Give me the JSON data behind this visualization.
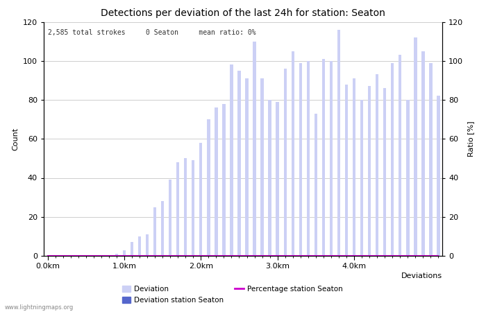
{
  "title": "Detections per deviation of the last 24h for station: Seaton",
  "xlabel": "Deviations",
  "ylabel_left": "Count",
  "ylabel_right": "Ratio [%]",
  "info_text": "2,585 total strokes     0 Seaton     mean ratio: 0%",
  "watermark": "www.lightningmaps.org",
  "ylim": [
    0,
    120
  ],
  "yticks": [
    0,
    20,
    40,
    60,
    80,
    100,
    120
  ],
  "bar_color_deviation": "#ccd0f5",
  "bar_color_station": "#5566cc",
  "line_color": "#cc00cc",
  "xtick_labels": [
    "0.0km",
    "1.0km",
    "2.0km",
    "3.0km",
    "4.0km"
  ],
  "xtick_positions": [
    0,
    10,
    20,
    30,
    40
  ],
  "deviation_values": [
    0,
    0,
    0,
    0,
    0,
    0,
    0,
    0,
    0,
    1,
    3,
    7,
    10,
    11,
    25,
    28,
    39,
    48,
    50,
    49,
    58,
    70,
    76,
    78,
    98,
    95,
    91,
    110,
    91,
    80,
    79,
    96,
    105,
    99,
    100,
    73,
    101,
    100,
    116,
    88,
    91,
    80,
    87,
    93,
    86,
    99,
    103,
    80,
    112,
    105,
    99,
    82
  ],
  "station_values": [
    0,
    0,
    0,
    0,
    0,
    0,
    0,
    0,
    0,
    0,
    0,
    0,
    0,
    0,
    0,
    0,
    0,
    0,
    0,
    0,
    0,
    0,
    0,
    0,
    0,
    0,
    0,
    0,
    0,
    0,
    0,
    0,
    0,
    0,
    0,
    0,
    0,
    0,
    0,
    0,
    0,
    0,
    0,
    0,
    0,
    0,
    0,
    0,
    0,
    0,
    0,
    0
  ],
  "percentage_values": [
    0,
    0,
    0,
    0,
    0,
    0,
    0,
    0,
    0,
    0,
    0,
    0,
    0,
    0,
    0,
    0,
    0,
    0,
    0,
    0,
    0,
    0,
    0,
    0,
    0,
    0,
    0,
    0,
    0,
    0,
    0,
    0,
    0,
    0,
    0,
    0,
    0,
    0,
    0,
    0,
    0,
    0,
    0,
    0,
    0,
    0,
    0,
    0,
    0,
    0,
    0,
    0
  ],
  "legend_deviation_label": "Deviation",
  "legend_station_label": "Deviation station Seaton",
  "legend_percentage_label": "Percentage station Seaton",
  "background_color": "#ffffff",
  "grid_color": "#bbbbbb",
  "title_fontsize": 10,
  "axis_fontsize": 8,
  "tick_fontsize": 8,
  "info_fontsize": 7
}
